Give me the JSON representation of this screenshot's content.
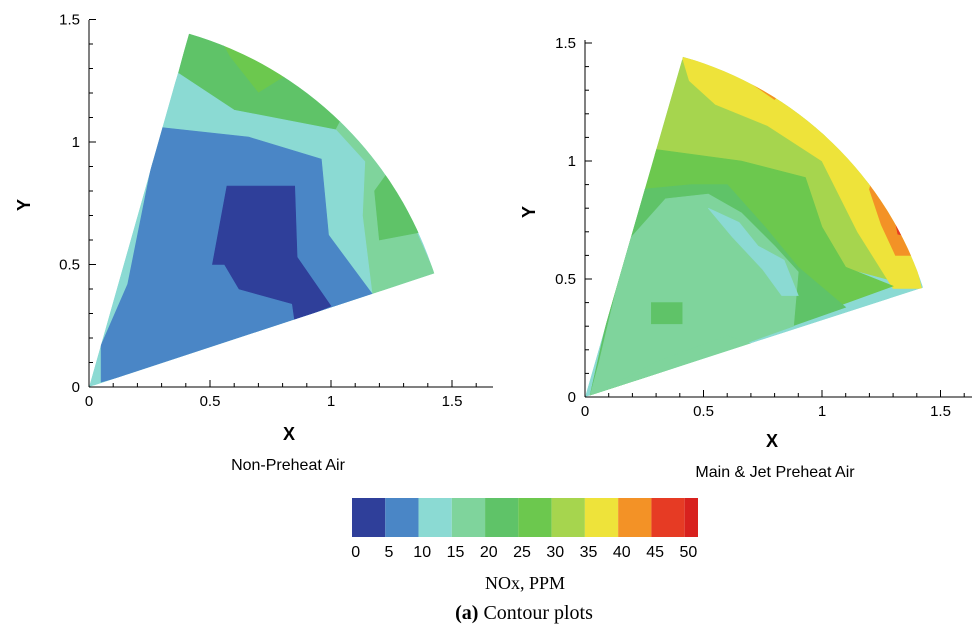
{
  "chart_data": [
    {
      "type": "heatmap",
      "title": "Non-Preheat  Air",
      "xlabel": "X",
      "ylabel": "Y",
      "xlim": [
        0,
        1.65
      ],
      "ylim": [
        0,
        1.5
      ],
      "xticks": [
        "0",
        "0.5",
        "1",
        "1.5"
      ],
      "yticks": [
        "0",
        "0.5",
        "1",
        "1.5"
      ],
      "sector_angles_deg": [
        18,
        74
      ],
      "sector_radius": 1.5,
      "regions": [
        {
          "level": "25-30",
          "points": [
            [
              0.52,
              1.46
            ],
            [
              0.72,
              1.45
            ],
            [
              0.96,
              1.36
            ],
            [
              0.7,
              1.2
            ],
            [
              0.58,
              1.35
            ]
          ]
        },
        {
          "level": "20-25",
          "points": [
            [
              0.41,
              1.44
            ],
            [
              0.52,
              1.46
            ],
            [
              0.58,
              1.35
            ],
            [
              0.7,
              1.2
            ],
            [
              0.96,
              1.36
            ],
            [
              1.1,
              1.2
            ],
            [
              1.02,
              1.05
            ],
            [
              0.6,
              1.13
            ],
            [
              0.37,
              1.28
            ]
          ]
        },
        {
          "level": "15-20",
          "points": [
            [
              1.1,
              1.2
            ],
            [
              1.43,
              0.46
            ],
            [
              1.17,
              0.38
            ],
            [
              1.13,
              0.7
            ],
            [
              1.14,
              0.92
            ],
            [
              1.02,
              1.05
            ]
          ]
        },
        {
          "level": "20-25",
          "points": [
            [
              1.26,
              0.91
            ],
            [
              1.36,
              0.63
            ],
            [
              1.2,
              0.6
            ],
            [
              1.18,
              0.8
            ]
          ]
        },
        {
          "level": "10-15",
          "points": [
            [
              0.37,
              1.28
            ],
            [
              0.6,
              1.13
            ],
            [
              1.02,
              1.05
            ],
            [
              1.14,
              0.92
            ],
            [
              1.13,
              0.7
            ],
            [
              1.17,
              0.38
            ],
            [
              0.02,
              0.0
            ],
            [
              0.06,
              0.12
            ],
            [
              0.16,
              0.42
            ],
            [
              0.29,
              1.06
            ]
          ]
        },
        {
          "level": "5-10",
          "points": [
            [
              0.29,
              1.06
            ],
            [
              0.66,
              1.02
            ],
            [
              0.96,
              0.93
            ],
            [
              0.99,
              0.62
            ],
            [
              1.17,
              0.38
            ],
            [
              0.16,
              0.05
            ],
            [
              0.05,
              0.02
            ],
            [
              0.05,
              0.17
            ],
            [
              0.16,
              0.42
            ]
          ]
        },
        {
          "level": "0-5",
          "points": [
            [
              0.57,
              0.82
            ],
            [
              0.85,
              0.82
            ],
            [
              0.86,
              0.53
            ],
            [
              1.0,
              0.33
            ],
            [
              0.85,
              0.27
            ],
            [
              0.84,
              0.34
            ],
            [
              0.62,
              0.4
            ],
            [
              0.56,
              0.5
            ],
            [
              0.51,
              0.5
            ]
          ]
        }
      ]
    },
    {
      "type": "heatmap",
      "title": "Main & Jet Preheat Air",
      "xlabel": "X",
      "ylabel": "Y",
      "xlim": [
        0,
        1.65
      ],
      "ylim": [
        0,
        1.5
      ],
      "xticks": [
        "0",
        "0.5",
        "1",
        "1.5"
      ],
      "yticks": [
        "0",
        "0.5",
        "1",
        "1.5"
      ],
      "sector_angles_deg": [
        18,
        74
      ],
      "sector_radius": 1.5,
      "regions": [
        {
          "level": "30-35",
          "points": [
            [
              0.38,
              1.44
            ],
            [
              0.9,
              1.23
            ],
            [
              1.2,
              0.9
            ],
            [
              1.42,
              0.46
            ],
            [
              0.9,
              0.6
            ],
            [
              0.6,
              0.95
            ],
            [
              0.28,
              1.03
            ]
          ]
        },
        {
          "level": "35-40",
          "points": [
            [
              0.41,
              1.44
            ],
            [
              0.68,
              1.37
            ],
            [
              0.95,
              1.23
            ],
            [
              1.2,
              0.99
            ],
            [
              1.35,
              0.75
            ],
            [
              1.42,
              0.46
            ],
            [
              1.3,
              0.46
            ],
            [
              1.15,
              0.7
            ],
            [
              1.0,
              1.0
            ],
            [
              0.77,
              1.15
            ],
            [
              0.55,
              1.24
            ],
            [
              0.44,
              1.34
            ]
          ]
        },
        {
          "level": "40-45",
          "points": [
            [
              0.6,
              1.42
            ],
            [
              0.85,
              1.33
            ],
            [
              0.8,
              1.26
            ],
            [
              0.7,
              1.33
            ]
          ]
        },
        {
          "level": "40-45",
          "points": [
            [
              1.22,
              0.95
            ],
            [
              1.35,
              0.73
            ],
            [
              1.39,
              0.6
            ],
            [
              1.31,
              0.6
            ],
            [
              1.25,
              0.73
            ],
            [
              1.2,
              0.88
            ]
          ]
        },
        {
          "level": "45-50",
          "points": [
            [
              0.72,
              1.39
            ],
            [
              0.81,
              1.33
            ],
            [
              0.76,
              1.3
            ]
          ]
        },
        {
          "level": "45-50",
          "points": [
            [
              1.29,
              0.84
            ],
            [
              1.36,
              0.68
            ],
            [
              1.32,
              0.69
            ]
          ]
        },
        {
          "level": "25-30",
          "points": [
            [
              0.29,
              1.05
            ],
            [
              0.66,
              1.0
            ],
            [
              0.93,
              0.93
            ],
            [
              1.0,
              0.72
            ],
            [
              1.1,
              0.55
            ],
            [
              1.3,
              0.47
            ],
            [
              0.75,
              0.27
            ],
            [
              0.02,
              0.0
            ],
            [
              0.1,
              0.35
            ]
          ]
        },
        {
          "level": "20-25",
          "points": [
            [
              0.24,
              0.88
            ],
            [
              0.45,
              0.9
            ],
            [
              0.6,
              0.9
            ],
            [
              0.76,
              0.72
            ],
            [
              0.9,
              0.55
            ],
            [
              1.1,
              0.38
            ],
            [
              0.02,
              0.0
            ],
            [
              0.12,
              0.45
            ]
          ]
        },
        {
          "level": "15-20",
          "points": [
            [
              0.52,
              0.86
            ],
            [
              0.66,
              0.78
            ],
            [
              0.8,
              0.64
            ],
            [
              0.9,
              0.53
            ],
            [
              0.88,
              0.3
            ],
            [
              0.6,
              0.2
            ],
            [
              0.02,
              0.0
            ],
            [
              0.06,
              0.15
            ],
            [
              0.18,
              0.66
            ],
            [
              0.34,
              0.84
            ]
          ]
        },
        {
          "level": "10-15",
          "points": [
            [
              0.52,
              0.8
            ],
            [
              0.65,
              0.74
            ],
            [
              0.73,
              0.64
            ],
            [
              0.84,
              0.58
            ],
            [
              0.9,
              0.43
            ],
            [
              0.83,
              0.43
            ],
            [
              0.75,
              0.54
            ],
            [
              0.62,
              0.68
            ]
          ]
        },
        {
          "level": "20-25",
          "points": [
            [
              0.28,
              0.4
            ],
            [
              0.41,
              0.4
            ],
            [
              0.41,
              0.31
            ],
            [
              0.28,
              0.31
            ]
          ]
        },
        {
          "level": "15-20",
          "points": [
            [
              0.02,
              0.0
            ],
            [
              0.3,
              0.15
            ],
            [
              0.6,
              0.26
            ],
            [
              0.72,
              0.22
            ],
            [
              0.2,
              0.04
            ]
          ]
        }
      ]
    }
  ],
  "colorbar": {
    "title": "NOx, PPM",
    "ticks": [
      "0",
      "5",
      "10",
      "15",
      "20",
      "25",
      "30",
      "35",
      "40",
      "45",
      "50"
    ],
    "bands": [
      {
        "range": "0-5",
        "color": "#2f3f9a"
      },
      {
        "range": "5-10",
        "color": "#4a86c6"
      },
      {
        "range": "10-15",
        "color": "#8bdad3"
      },
      {
        "range": "15-20",
        "color": "#7fd49c"
      },
      {
        "range": "20-25",
        "color": "#5fc368"
      },
      {
        "range": "25-30",
        "color": "#6cc84e"
      },
      {
        "range": "30-35",
        "color": "#a6d54e"
      },
      {
        "range": "35-40",
        "color": "#eee33a"
      },
      {
        "range": "40-45",
        "color": "#f39226"
      },
      {
        "range": "45-50",
        "color": "#e63b24"
      },
      {
        "range": "50+",
        "color": "#d8211e"
      }
    ]
  },
  "caption": {
    "label": "(a)",
    "text": " Contour plots"
  }
}
